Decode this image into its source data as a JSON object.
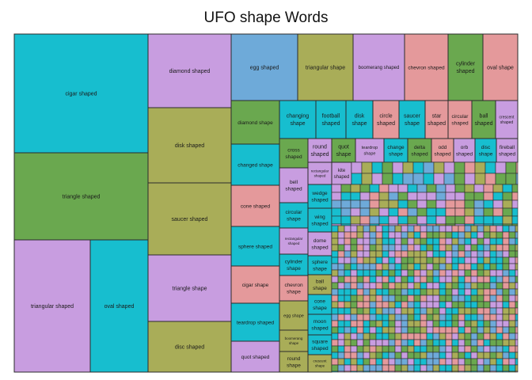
{
  "chart_data": {
    "type": "treemap",
    "title": "UFO shape Words",
    "colors": [
      "#17becf",
      "#6aa84f",
      "#c89de0",
      "#a9ad58",
      "#e4999b",
      "#6eaad9"
    ],
    "border_color": "#2b2b2b",
    "small_cell_count": 340,
    "top_level": [
      {
        "label": "cigar shaped",
        "color": "#17becf"
      },
      {
        "label": "triangle shaped",
        "color": "#6aa84f"
      },
      {
        "label": "triangular shaped",
        "color": "#c89de0"
      },
      {
        "label": "oval shaped",
        "color": "#17becf"
      },
      {
        "label": "diamond shaped",
        "color": "#c89de0"
      },
      {
        "label": "disk shaped",
        "color": "#a9ad58"
      },
      {
        "label": "saucer shaped",
        "color": "#a9ad58"
      },
      {
        "label": "triangle shape",
        "color": "#c89de0"
      },
      {
        "label": "disc shaped",
        "color": "#a9ad58"
      },
      {
        "label": "egg shaped",
        "color": "#6eaad9"
      },
      {
        "label": "triangular shape",
        "color": "#a9ad58"
      },
      {
        "label": "boomerang shaped",
        "color": "#c89de0"
      },
      {
        "label": "chevron shaped",
        "color": "#e4999b"
      },
      {
        "label": "cylinder shaped",
        "color": "#6aa84f"
      },
      {
        "label": "oval shape",
        "color": "#e4999b"
      },
      {
        "label": "diamond shape",
        "color": "#6aa84f"
      },
      {
        "label": "changed shape",
        "color": "#17becf"
      },
      {
        "label": "cone shaped",
        "color": "#e4999b"
      },
      {
        "label": "sphere shaped",
        "color": "#17becf"
      },
      {
        "label": "cigar shape",
        "color": "#e4999b"
      },
      {
        "label": "teardrop shaped",
        "color": "#17becf"
      },
      {
        "label": "quot shaped",
        "color": "#c89de0"
      },
      {
        "label": "changing shape",
        "color": "#17becf"
      },
      {
        "label": "football shaped",
        "color": "#17becf"
      },
      {
        "label": "disk shape",
        "color": "#17becf"
      },
      {
        "label": "circle shaped",
        "color": "#e4999b"
      },
      {
        "label": "saucer shape",
        "color": "#17becf"
      },
      {
        "label": "star shaped",
        "color": "#e4999b"
      },
      {
        "label": "circular shaped",
        "color": "#e4999b"
      },
      {
        "label": "ball shaped",
        "color": "#6aa84f"
      },
      {
        "label": "crescent shaped",
        "color": "#c89de0"
      },
      {
        "label": "cross shaped",
        "color": "#6aa84f"
      },
      {
        "label": "round shaped",
        "color": "#c89de0"
      },
      {
        "label": "quot shape",
        "color": "#6aa84f"
      },
      {
        "label": "teardrop shape",
        "color": "#c89de0"
      },
      {
        "label": "change shape",
        "color": "#17becf"
      },
      {
        "label": "delta shaped",
        "color": "#6aa84f"
      },
      {
        "label": "odd shaped",
        "color": "#e4999b"
      },
      {
        "label": "orb shaped",
        "color": "#c89de0"
      },
      {
        "label": "disc shape",
        "color": "#17becf"
      },
      {
        "label": "fireball shaped",
        "color": "#c89de0"
      },
      {
        "label": "bell shaped",
        "color": "#c89de0"
      },
      {
        "label": "circular shape",
        "color": "#17becf"
      },
      {
        "label": "rectangular shaped",
        "color": "#c89de0"
      },
      {
        "label": "cylinder shape",
        "color": "#17becf"
      },
      {
        "label": "chevron shape",
        "color": "#e4999b"
      },
      {
        "label": "egg shape",
        "color": "#a9ad58"
      },
      {
        "label": "boomerang shape",
        "color": "#a9ad58"
      },
      {
        "label": "round shape",
        "color": "#a9ad58"
      },
      {
        "label": "rectangular shaped",
        "color": "#c89de0"
      },
      {
        "label": "kite shaped",
        "color": "#c89de0"
      },
      {
        "label": "wedge shaped",
        "color": "#17becf"
      },
      {
        "label": "wing shaped",
        "color": "#17becf"
      },
      {
        "label": "dome shaped",
        "color": "#c89de0"
      },
      {
        "label": "sphere shape",
        "color": "#17becf"
      },
      {
        "label": "ball shape",
        "color": "#a9ad58"
      },
      {
        "label": "cone shape",
        "color": "#17becf"
      },
      {
        "label": "moon shaped",
        "color": "#17becf"
      },
      {
        "label": "square shaped",
        "color": "#17becf"
      },
      {
        "label": "crescent shape",
        "color": "#a9ad58"
      }
    ]
  }
}
